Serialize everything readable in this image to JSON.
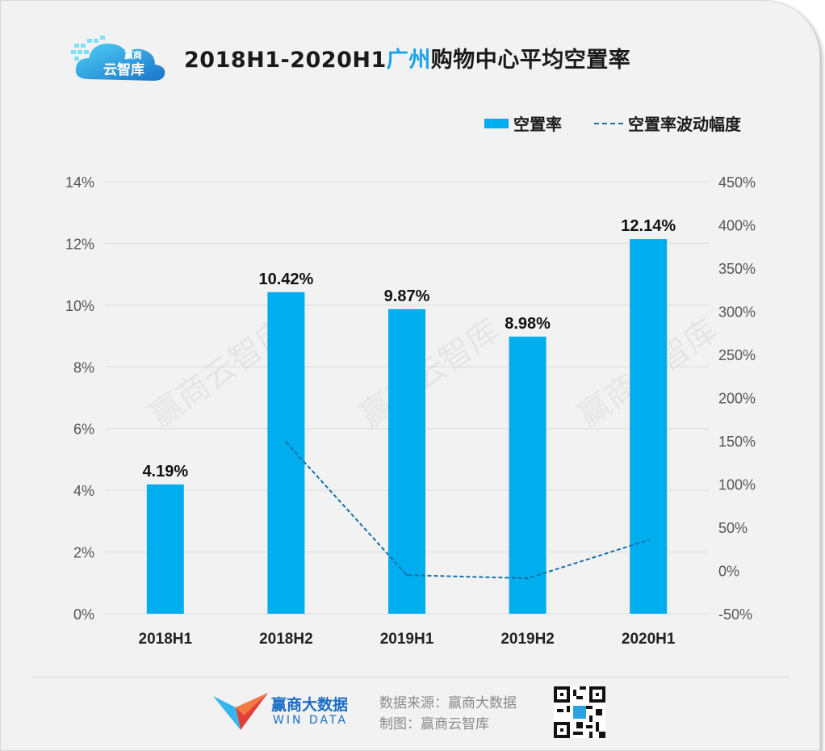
{
  "header": {
    "logo_text_top": "赢商",
    "logo_text_bottom": "云智库",
    "title_prefix": "2018H1-2020H1",
    "title_highlight": "广州",
    "title_suffix": "购物中心平均空置率"
  },
  "legend": {
    "bar_label": "空置率",
    "line_label": "空置率波动幅度"
  },
  "watermarks": [
    "赢商云智库",
    "赢商云智库",
    "赢商云智库"
  ],
  "chart_data": {
    "type": "bar",
    "categories": [
      "2018H1",
      "2018H2",
      "2019H1",
      "2019H2",
      "2020H1"
    ],
    "series": [
      {
        "name": "空置率",
        "type": "bar",
        "axis": "left",
        "values": [
          4.19,
          10.42,
          9.87,
          8.98,
          12.14
        ],
        "labels": [
          "4.19%",
          "10.42%",
          "9.87%",
          "8.98%",
          "12.14%"
        ]
      },
      {
        "name": "空置率波动幅度",
        "type": "line",
        "axis": "right",
        "values": [
          null,
          148.7,
          -5.3,
          -9.0,
          35.2
        ]
      }
    ],
    "y_left": {
      "min": 0,
      "max": 14,
      "step": 2,
      "tick_labels": [
        "0%",
        "2%",
        "4%",
        "6%",
        "8%",
        "10%",
        "12%",
        "14%"
      ]
    },
    "y_right": {
      "min": -50,
      "max": 450,
      "step": 50,
      "tick_labels": [
        "-50%",
        "0%",
        "50%",
        "100%",
        "150%",
        "200%",
        "250%",
        "300%",
        "350%",
        "400%",
        "450%"
      ]
    },
    "grid": true,
    "legend_position": "top-right",
    "colors": {
      "bar": "#00aeef",
      "line": "#1670a8"
    }
  },
  "footer": {
    "brand_cn": "赢商大数据",
    "brand_en": "WIN DATA",
    "source_line": "数据来源：赢商大数据",
    "made_by_line": "制图：赢商云智库"
  }
}
